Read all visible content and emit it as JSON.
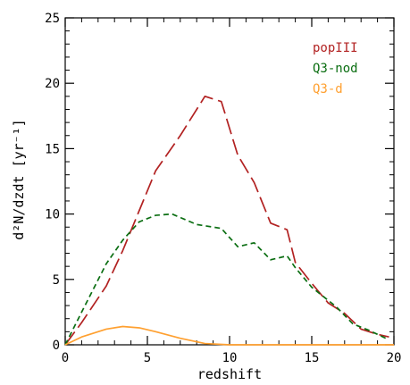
{
  "chart_data": {
    "type": "line",
    "title": "",
    "xlabel": "redshift",
    "ylabel": "d²N/dzdt [yr⁻¹]",
    "xlim": [
      0,
      20
    ],
    "ylim": [
      0,
      25
    ],
    "xticks": [
      0,
      5,
      10,
      15,
      20
    ],
    "yticks": [
      0,
      5,
      10,
      15,
      20,
      25
    ],
    "minor_x_step": 1,
    "minor_y_step": 1,
    "grid": false,
    "legend_position": "top-right",
    "series": [
      {
        "name": "popIII",
        "color": "#b22222",
        "dash": "long-dash",
        "x": [
          0,
          1,
          2.5,
          3.5,
          5.5,
          7,
          8.5,
          9.5,
          10.5,
          11.5,
          12.5,
          13.5,
          14,
          15,
          16,
          17,
          18,
          19,
          19.7
        ],
        "y": [
          0,
          1.7,
          4.5,
          7.2,
          13.3,
          16,
          19,
          18.6,
          14.5,
          12.4,
          9.3,
          8.8,
          6.3,
          4.7,
          3.2,
          2.4,
          1.2,
          0.8,
          0.6
        ]
      },
      {
        "name": "Q3-nod",
        "color": "#0b6e12",
        "dash": "short-dash",
        "x": [
          0,
          1,
          2.5,
          3.5,
          4.5,
          5.5,
          6.5,
          8,
          9.5,
          10.5,
          11.5,
          12.5,
          13.5,
          14,
          15,
          16.5,
          17.5,
          18.5,
          19.5
        ],
        "y": [
          0,
          2.5,
          6.2,
          8,
          9.4,
          9.9,
          10,
          9.2,
          8.9,
          7.5,
          7.8,
          6.5,
          6.8,
          5.9,
          4.4,
          2.9,
          1.6,
          1.1,
          0.5
        ]
      },
      {
        "name": "Q3-d",
        "color": "#ffa030",
        "dash": "solid",
        "x": [
          0,
          1,
          2.5,
          3.5,
          4.5,
          5.5,
          7,
          8.5,
          10,
          11,
          12,
          13,
          14,
          15,
          16,
          17,
          18,
          19,
          20
        ],
        "y": [
          0,
          0.6,
          1.2,
          1.4,
          1.3,
          1.0,
          0.5,
          0.1,
          0,
          0,
          0,
          0,
          0,
          0,
          0,
          0,
          0,
          0,
          0
        ]
      }
    ]
  }
}
